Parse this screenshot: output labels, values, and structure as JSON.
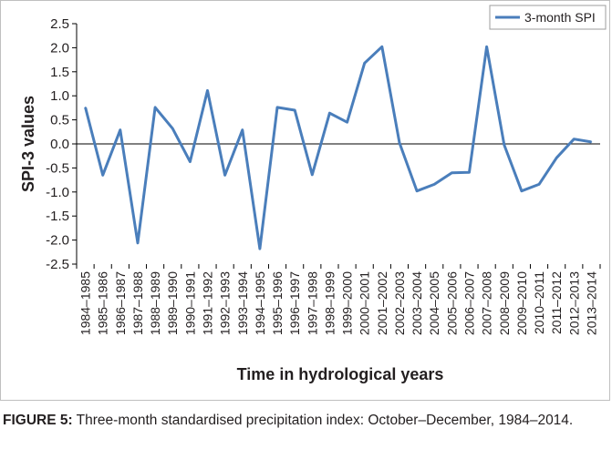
{
  "chart_data": {
    "type": "line",
    "ylabel": "SPI-3 values",
    "xlabel": "Time in hydrological years",
    "ylim": [
      -2.5,
      2.5
    ],
    "yticks": [
      "2.5",
      "2.0",
      "1.5",
      "1.0",
      "0.5",
      "0.0",
      "-0.5",
      "-1.0",
      "-1.5",
      "-2.0",
      "-2.5"
    ],
    "ytick_values": [
      2.5,
      2.0,
      1.5,
      1.0,
      0.5,
      0.0,
      -0.5,
      -1.0,
      -1.5,
      -2.0,
      -2.5
    ],
    "categories": [
      "1984–1985",
      "1985–1986",
      "1986–1987",
      "1987–1988",
      "1988–1989",
      "1989–1990",
      "1990–1991",
      "1991–1992",
      "1992–1993",
      "1993–1994",
      "1994–1995",
      "1995–1996",
      "1996–1997",
      "1997–1998",
      "1998–1999",
      "1999–2000",
      "2000–2001",
      "2001–2002",
      "2002–2003",
      "2003–2004",
      "2004–2005",
      "2005–2006",
      "2006–2007",
      "2007–2008",
      "2008–2009",
      "2009–2010",
      "2010–2011",
      "2011–2012",
      "2012–2013",
      "2013–2014"
    ],
    "series": [
      {
        "name": "3-month SPI",
        "color": "#4a7ebb",
        "values": [
          0.76,
          -0.65,
          0.29,
          -2.06,
          0.76,
          0.32,
          -0.37,
          1.11,
          -0.65,
          0.29,
          -2.18,
          0.76,
          0.7,
          -0.64,
          0.64,
          0.45,
          1.68,
          2.02,
          0.02,
          -0.98,
          -0.84,
          -0.6,
          -0.59,
          2.02,
          -0.02,
          -0.98,
          -0.84,
          -0.29,
          0.1,
          0.04
        ]
      }
    ],
    "grid": false,
    "legend_position": "top-right",
    "zero_line": true
  },
  "caption": {
    "label": "FIGURE 5:",
    "text": " Three-month standardised precipitation index: October–December, 1984–2014."
  }
}
